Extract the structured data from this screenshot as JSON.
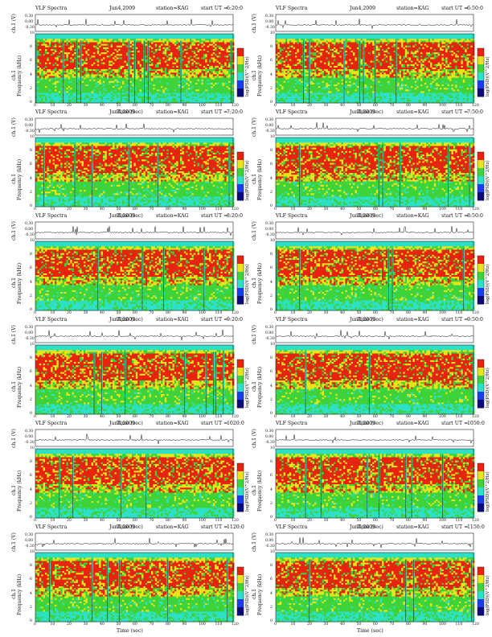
{
  "figure": {
    "title_left": "VLF Spectra",
    "date": "Jun4,2009",
    "station": "station=KAG",
    "start_prefix": "start UT =",
    "ch_ylabel": "ch.1 (V)",
    "freq_ylabel_a": "ch.1",
    "freq_ylabel_b": "Frequency (kHz)",
    "xlabel": "Time (sec)",
    "colorbar_label": "log(PSD)(V^2/Hz)",
    "ch_ticks": [
      "0.30",
      "0.00",
      "-0.30"
    ],
    "freq_ticks": [
      "10",
      "8",
      "6",
      "4",
      "2",
      "0"
    ],
    "colorbar_ticks": [
      "-",
      "-"
    ],
    "colors": {
      "red": "#e8220f",
      "yellow": "#e9e51a",
      "green": "#3fd33a",
      "cyan": "#2de0c8",
      "blue": "#1a3cf0",
      "navy": "#0a0a7a"
    }
  },
  "chart_data": [
    {
      "type": "heatmap",
      "start_ut": "6:20:0",
      "x_range": [
        0,
        120
      ],
      "y_range": [
        0,
        10
      ],
      "x_ticks": [
        "0",
        "10",
        "20",
        "30",
        "40",
        "50",
        "60",
        "70",
        "80",
        "90",
        "100",
        "110",
        "120"
      ]
    },
    {
      "type": "heatmap",
      "start_ut": "6:50:0",
      "x_range": [
        0,
        120
      ],
      "y_range": [
        0,
        10
      ],
      "x_ticks": [
        "0",
        "10",
        "20",
        "30",
        "40",
        "50",
        "60",
        "70",
        "80",
        "90",
        "100",
        "110",
        "120"
      ]
    },
    {
      "type": "heatmap",
      "start_ut": "7:20:0",
      "x_range": [
        0,
        120
      ],
      "y_range": [
        0,
        10
      ],
      "x_ticks": [
        "0",
        "10",
        "20",
        "30",
        "40",
        "50",
        "60",
        "70",
        "80",
        "90",
        "100",
        "110",
        "120"
      ]
    },
    {
      "type": "heatmap",
      "start_ut": "7:50:0",
      "x_range": [
        0,
        120
      ],
      "y_range": [
        0,
        10
      ],
      "x_ticks": [
        "0",
        "10",
        "20",
        "30",
        "40",
        "50",
        "60",
        "70",
        "80",
        "90",
        "100",
        "110",
        "120"
      ]
    },
    {
      "type": "heatmap",
      "start_ut": "8:20:0",
      "x_range": [
        0,
        120
      ],
      "y_range": [
        0,
        10
      ],
      "x_ticks": [
        "0",
        "10",
        "20",
        "30",
        "40",
        "50",
        "60",
        "70",
        "80",
        "90",
        "100",
        "110",
        "120"
      ]
    },
    {
      "type": "heatmap",
      "start_ut": "8:50:0",
      "x_range": [
        0,
        120
      ],
      "y_range": [
        0,
        10
      ],
      "x_ticks": [
        "0",
        "10",
        "20",
        "30",
        "40",
        "50",
        "60",
        "70",
        "80",
        "90",
        "100",
        "110",
        "120"
      ]
    },
    {
      "type": "heatmap",
      "start_ut": "9:20:0",
      "x_range": [
        0,
        120
      ],
      "y_range": [
        0,
        10
      ],
      "x_ticks": [
        "0",
        "10",
        "20",
        "30",
        "40",
        "50",
        "60",
        "70",
        "80",
        "90",
        "100",
        "110",
        "120"
      ]
    },
    {
      "type": "heatmap",
      "start_ut": "9:50:0",
      "x_range": [
        0,
        120
      ],
      "y_range": [
        0,
        10
      ],
      "x_ticks": [
        "0",
        "10",
        "20",
        "30",
        "40",
        "50",
        "60",
        "70",
        "80",
        "90",
        "100",
        "110",
        "120"
      ]
    },
    {
      "type": "heatmap",
      "start_ut": "1020:0",
      "x_range": [
        0,
        120
      ],
      "y_range": [
        0,
        10
      ],
      "x_ticks": [
        "0",
        "10",
        "20",
        "30",
        "40",
        "50",
        "60",
        "70",
        "80",
        "90",
        "100",
        "110",
        "120"
      ]
    },
    {
      "type": "heatmap",
      "start_ut": "1050:0",
      "x_range": [
        0,
        120
      ],
      "y_range": [
        0,
        10
      ],
      "x_ticks": [
        "0",
        "10",
        "20",
        "30",
        "40",
        "50",
        "60",
        "70",
        "80",
        "90",
        "100",
        "110",
        "120"
      ]
    },
    {
      "type": "heatmap",
      "start_ut": "1120:0",
      "x_range": [
        0,
        120
      ],
      "y_range": [
        0,
        10
      ],
      "x_ticks": [
        "0",
        "10",
        "20",
        "30",
        "40",
        "50",
        "60",
        "70",
        "80",
        "90",
        "100",
        "110",
        "120"
      ]
    },
    {
      "type": "heatmap",
      "start_ut": "1150:0",
      "x_range": [
        0,
        120
      ],
      "y_range": [
        0,
        10
      ],
      "x_ticks": [
        "0",
        "10",
        "20",
        "30",
        "40",
        "50",
        "60",
        "70",
        "80",
        "90",
        "100",
        "110",
        "120"
      ]
    }
  ]
}
